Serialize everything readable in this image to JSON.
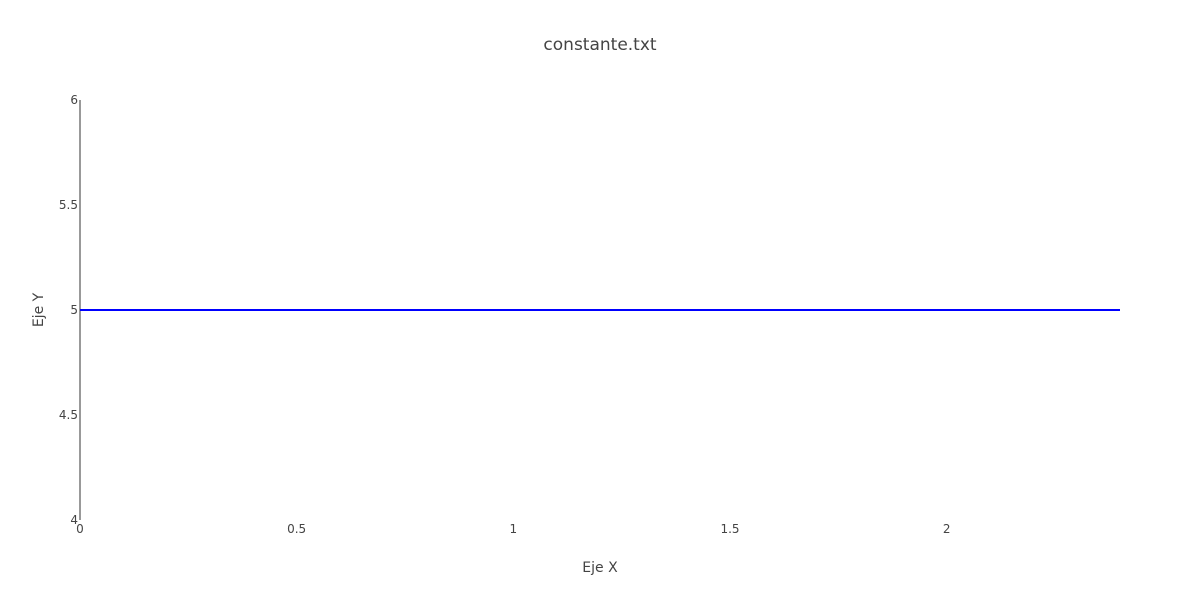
{
  "chart_data": {
    "type": "line",
    "title": "constante.txt",
    "xlabel": "Eje X",
    "ylabel": "Eje Y",
    "xlim": [
      0,
      2.4
    ],
    "ylim": [
      4,
      6
    ],
    "x_ticks": [
      "0",
      "0.5",
      "1",
      "1.5",
      "2"
    ],
    "y_ticks": [
      "4",
      "4.5",
      "5",
      "5.5",
      "6"
    ],
    "grid": false,
    "series": [
      {
        "x": [
          0,
          2.4
        ],
        "y": [
          5,
          5
        ],
        "color": "#0000ff"
      }
    ]
  }
}
